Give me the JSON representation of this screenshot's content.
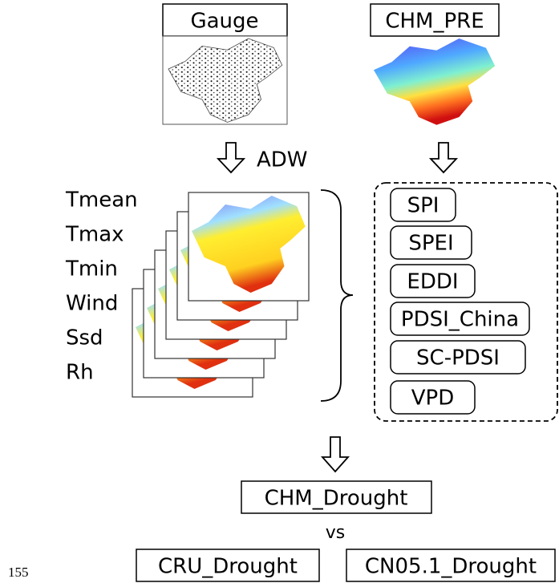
{
  "header": {
    "gauge": "Gauge",
    "chm_pre": "CHM_PRE",
    "method": "ADW"
  },
  "variables": [
    "Tmean",
    "Tmax",
    "Tmin",
    "Wind",
    "Ssd",
    "Rh"
  ],
  "indices": [
    "SPI",
    "SPEI",
    "EDDI",
    "PDSI_China",
    "SC-PDSI",
    "VPD"
  ],
  "output": "CHM_Drought",
  "comparison": "vs",
  "references": [
    "CRU_Drought",
    "CN05.1_Drought"
  ],
  "line_number": "155"
}
